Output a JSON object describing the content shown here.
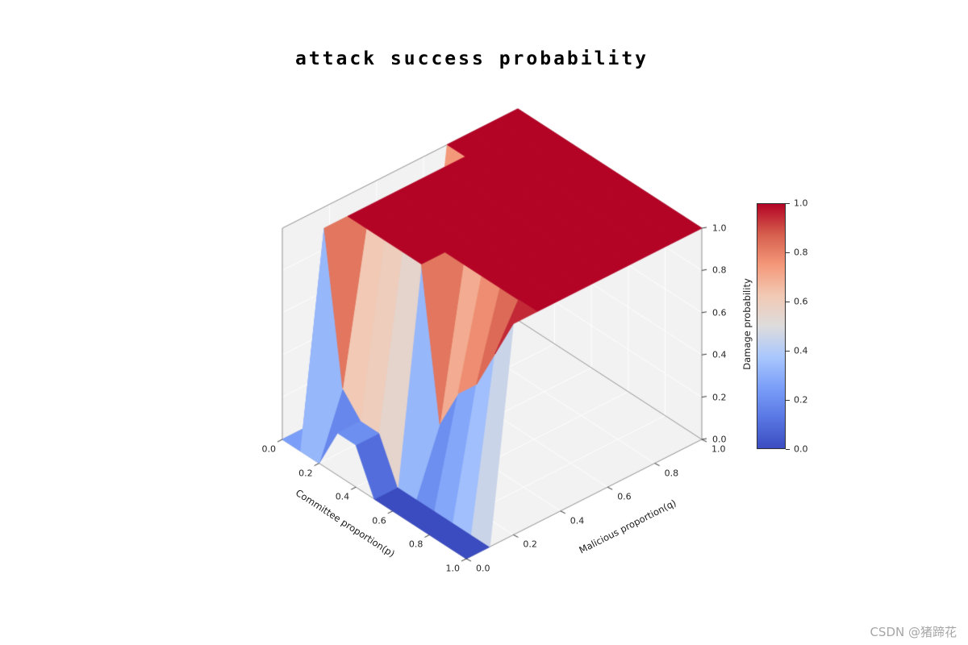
{
  "title": "attack success probability",
  "watermark": "CSDN @猪蹄花",
  "axes": {
    "x": {
      "label": "Committee proportion(p)",
      "ticks": [
        "0.0",
        "0.2",
        "0.4",
        "0.6",
        "0.8",
        "1.0"
      ]
    },
    "y": {
      "label": "Malicious proportion(q)",
      "ticks": [
        "0.0",
        "0.2",
        "0.4",
        "0.6",
        "0.8",
        "1.0"
      ]
    },
    "z": {
      "label": "Damage probability",
      "ticks": [
        "0.0",
        "0.2",
        "0.4",
        "0.6",
        "0.8",
        "1.0"
      ]
    }
  },
  "colorbar": {
    "ticks": [
      "0.0",
      "0.2",
      "0.4",
      "0.6",
      "0.8",
      "1.0"
    ],
    "colormap": "coolwarm",
    "gradient": [
      {
        "t": 0.0,
        "c": "#3b4cc0"
      },
      {
        "t": 0.125,
        "c": "#5977e3"
      },
      {
        "t": 0.25,
        "c": "#7b9ff9"
      },
      {
        "t": 0.375,
        "c": "#aac7fd"
      },
      {
        "t": 0.5,
        "c": "#dddcdc"
      },
      {
        "t": 0.625,
        "c": "#f2c9b4"
      },
      {
        "t": 0.75,
        "c": "#f4987a"
      },
      {
        "t": 0.875,
        "c": "#d65f4d"
      },
      {
        "t": 1.0,
        "c": "#b40426"
      }
    ]
  },
  "colors": {
    "pane": "#f2f2f2",
    "pane_grid": "#ffffff",
    "box_edge": "#8c8c8c",
    "tick": "#333333",
    "text": "#262626",
    "background": "#ffffff",
    "watermark": "#a6a6a6"
  },
  "chart_data": {
    "type": "surface",
    "title": "attack success probability",
    "xlabel": "Committee proportion(p)",
    "ylabel": "Malicious proportion(q)",
    "zlabel": "Damage probability",
    "xlim": [
      0,
      1
    ],
    "ylim": [
      0,
      1
    ],
    "zlim": [
      0,
      1
    ],
    "colormap": "coolwarm",
    "view": {
      "elev": 30,
      "azim": -60
    },
    "x": [
      0.0,
      0.1,
      0.2,
      0.3,
      0.4,
      0.5,
      0.6,
      0.7,
      0.8,
      0.9,
      1.0
    ],
    "y": [
      0.0,
      0.1,
      0.2,
      0.3,
      0.4,
      0.5,
      0.6,
      0.7,
      0.8,
      0.9,
      1.0
    ],
    "z_grid": [
      [
        0.0,
        0.0,
        0.0,
        0.0,
        0.0,
        0.0,
        0.0,
        1.0,
        1.0,
        1.0,
        1.0
      ],
      [
        0.0,
        1.0,
        1.0,
        1.0,
        1.0,
        1.0,
        1.0,
        1.0,
        1.0,
        1.0,
        1.0
      ],
      [
        0.0,
        0.3,
        1.0,
        1.0,
        1.0,
        1.0,
        1.0,
        1.0,
        1.0,
        1.0,
        1.0
      ],
      [
        0.2,
        0.2,
        1.0,
        1.0,
        1.0,
        1.0,
        1.0,
        1.0,
        1.0,
        1.0,
        1.0
      ],
      [
        0.2,
        0.2,
        1.0,
        1.0,
        1.0,
        1.0,
        1.0,
        1.0,
        1.0,
        1.0,
        1.0
      ],
      [
        0.0,
        0.0,
        1.0,
        1.0,
        1.0,
        1.0,
        1.0,
        1.0,
        1.0,
        1.0,
        1.0
      ],
      [
        0.0,
        0.0,
        0.3,
        1.0,
        1.0,
        1.0,
        1.0,
        1.0,
        1.0,
        1.0,
        1.0
      ],
      [
        0.0,
        0.0,
        0.5,
        1.0,
        1.0,
        1.0,
        1.0,
        1.0,
        1.0,
        1.0,
        1.0
      ],
      [
        0.0,
        0.0,
        0.6,
        1.0,
        1.0,
        1.0,
        1.0,
        1.0,
        1.0,
        1.0,
        1.0
      ],
      [
        0.0,
        0.0,
        0.8,
        1.0,
        1.0,
        1.0,
        1.0,
        1.0,
        1.0,
        1.0,
        1.0
      ],
      [
        0.0,
        0.0,
        1.0,
        1.0,
        1.0,
        1.0,
        1.0,
        1.0,
        1.0,
        1.0,
        1.0
      ]
    ]
  }
}
